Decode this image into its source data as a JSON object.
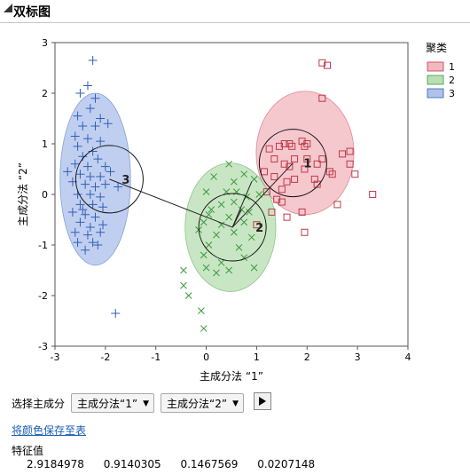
{
  "window": {
    "title": "双标图"
  },
  "chart_data": {
    "type": "scatter",
    "xlabel": "主成分法 “1”",
    "ylabel": "主成分法 “2”",
    "xlim": [
      -3,
      4
    ],
    "ylim": [
      -3,
      3
    ],
    "xticks": [
      "-3",
      "-2",
      "-1",
      "0",
      "1",
      "2",
      "3",
      "4"
    ],
    "yticks": [
      "-3",
      "-2",
      "-1",
      "0",
      "1",
      "2",
      "3"
    ],
    "legend_title": "聚类",
    "legend_placement": "right",
    "series": [
      {
        "name": "1",
        "marker": "square",
        "color": "#c0394a",
        "fill": "#f2b8bf",
        "centroid": [
          1.72,
          0.62
        ],
        "ellipse": {
          "cx": 1.96,
          "cy": 0.82,
          "rx": 0.97,
          "ry": 1.22
        },
        "points": [
          [
            2.3,
            2.6
          ],
          [
            2.4,
            2.55
          ],
          [
            2.3,
            1.9
          ],
          [
            1.55,
            1.0
          ],
          [
            1.65,
            1.0
          ],
          [
            1.9,
            1.05
          ],
          [
            2.0,
            1.0
          ],
          [
            1.95,
            0.95
          ],
          [
            1.45,
            0.95
          ],
          [
            1.7,
            0.95
          ],
          [
            1.25,
            0.9
          ],
          [
            2.7,
            0.8
          ],
          [
            2.85,
            0.85
          ],
          [
            1.35,
            0.7
          ],
          [
            1.75,
            0.7
          ],
          [
            2.0,
            0.7
          ],
          [
            2.3,
            0.7
          ],
          [
            1.55,
            0.6
          ],
          [
            1.65,
            0.55
          ],
          [
            2.2,
            0.6
          ],
          [
            1.95,
            0.5
          ],
          [
            2.45,
            0.45
          ],
          [
            1.15,
            0.45
          ],
          [
            1.35,
            0.35
          ],
          [
            2.5,
            0.4
          ],
          [
            2.15,
            0.3
          ],
          [
            1.75,
            0.3
          ],
          [
            2.2,
            0.2
          ],
          [
            1.6,
            0.25
          ],
          [
            2.85,
            0.6
          ],
          [
            1.5,
            0.1
          ],
          [
            2.95,
            0.4
          ],
          [
            3.3,
            0.0
          ],
          [
            1.2,
            0.05
          ],
          [
            1.4,
            -0.1
          ],
          [
            1.5,
            -0.15
          ],
          [
            2.6,
            -0.2
          ],
          [
            1.6,
            -0.45
          ],
          [
            1.0,
            -0.6
          ],
          [
            1.3,
            -0.35
          ],
          [
            1.95,
            -0.75
          ],
          [
            1.9,
            -0.35
          ]
        ]
      },
      {
        "name": "2",
        "marker": "x",
        "color": "#3c9a3c",
        "fill": "#b9dfb4",
        "centroid": [
          0.52,
          -0.65
        ],
        "ellipse": {
          "cx": 0.48,
          "cy": -0.65,
          "rx": 0.9,
          "ry": 1.27
        },
        "points": [
          [
            0.45,
            0.6
          ],
          [
            0.75,
            0.4
          ],
          [
            0.15,
            0.35
          ],
          [
            0.55,
            0.25
          ],
          [
            0.95,
            0.3
          ],
          [
            0.4,
            0.05
          ],
          [
            0.6,
            0.05
          ],
          [
            0.0,
            0.05
          ],
          [
            0.8,
            -0.05
          ],
          [
            1.05,
            0.0
          ],
          [
            0.3,
            -0.2
          ],
          [
            0.55,
            -0.15
          ],
          [
            0.1,
            -0.3
          ],
          [
            0.7,
            -0.3
          ],
          [
            0.05,
            -0.4
          ],
          [
            0.45,
            -0.45
          ],
          [
            0.85,
            -0.35
          ],
          [
            -0.05,
            -0.55
          ],
          [
            0.3,
            -0.6
          ],
          [
            0.75,
            -0.55
          ],
          [
            0.2,
            -0.8
          ],
          [
            0.55,
            -0.75
          ],
          [
            -0.15,
            -0.7
          ],
          [
            0.9,
            -0.85
          ],
          [
            0.05,
            -1.0
          ],
          [
            0.65,
            -1.05
          ],
          [
            -0.05,
            -1.2
          ],
          [
            0.3,
            -1.35
          ],
          [
            0.75,
            -1.25
          ],
          [
            -0.45,
            -1.5
          ],
          [
            0.0,
            -1.45
          ],
          [
            0.45,
            -1.5
          ],
          [
            -0.45,
            -1.8
          ],
          [
            -0.35,
            -2.0
          ],
          [
            -0.1,
            -2.3
          ],
          [
            -0.05,
            -2.65
          ],
          [
            0.95,
            -1.45
          ],
          [
            0.2,
            -1.55
          ]
        ]
      },
      {
        "name": "3",
        "marker": "plus",
        "color": "#2f5fb8",
        "fill": "#aec2ec",
        "centroid": [
          -1.92,
          0.3
        ],
        "ellipse": {
          "cx": -2.2,
          "cy": 0.3,
          "rx": 0.7,
          "ry": 1.7
        },
        "points": [
          [
            -2.25,
            2.65
          ],
          [
            -2.35,
            2.15
          ],
          [
            -2.5,
            2.0
          ],
          [
            -2.2,
            1.9
          ],
          [
            -2.3,
            1.7
          ],
          [
            -2.1,
            1.5
          ],
          [
            -2.55,
            1.55
          ],
          [
            -2.45,
            1.35
          ],
          [
            -2.2,
            1.35
          ],
          [
            -1.95,
            1.4
          ],
          [
            -2.6,
            1.15
          ],
          [
            -2.35,
            1.1
          ],
          [
            -2.1,
            1.05
          ],
          [
            -2.55,
            0.95
          ],
          [
            -2.25,
            0.85
          ],
          [
            -2.45,
            0.75
          ],
          [
            -2.15,
            0.7
          ],
          [
            -2.6,
            0.6
          ],
          [
            -2.35,
            0.55
          ],
          [
            -2.0,
            0.55
          ],
          [
            -2.75,
            0.45
          ],
          [
            -2.5,
            0.4
          ],
          [
            -2.3,
            0.35
          ],
          [
            -2.1,
            0.35
          ],
          [
            -1.9,
            0.45
          ],
          [
            -2.65,
            0.25
          ],
          [
            -2.4,
            0.2
          ],
          [
            -2.2,
            0.15
          ],
          [
            -2.0,
            0.2
          ],
          [
            -1.75,
            0.15
          ],
          [
            -2.55,
            0.0
          ],
          [
            -2.3,
            0.0
          ],
          [
            -2.1,
            -0.05
          ],
          [
            -2.5,
            -0.2
          ],
          [
            -2.25,
            -0.2
          ],
          [
            -2.05,
            -0.25
          ],
          [
            -2.65,
            -0.35
          ],
          [
            -2.4,
            -0.4
          ],
          [
            -2.2,
            -0.45
          ],
          [
            -2.5,
            -0.55
          ],
          [
            -2.3,
            -0.65
          ],
          [
            -2.05,
            -0.6
          ],
          [
            -2.6,
            -0.75
          ],
          [
            -2.35,
            -0.8
          ],
          [
            -2.1,
            -0.75
          ],
          [
            -2.55,
            -0.95
          ],
          [
            -2.25,
            -0.95
          ],
          [
            -2.4,
            -1.1
          ],
          [
            -2.15,
            -1.0
          ],
          [
            -1.8,
            -2.35
          ],
          [
            -2.45,
            -0.3
          ]
        ]
      }
    ]
  },
  "controls": {
    "select_label": "选择主成分",
    "select1_value": "主成分法“1”",
    "select2_value": "主成分法“2”",
    "save_link": "将颜色保存至表"
  },
  "eigen": {
    "title": "特征值",
    "values": [
      "2.9184978",
      "0.9140305",
      "0.1467569",
      "0.0207148"
    ]
  }
}
